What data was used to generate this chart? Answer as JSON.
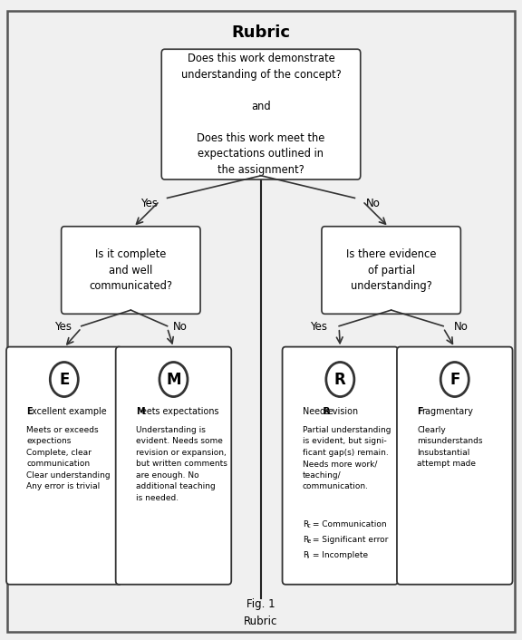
{
  "title": "Rubric",
  "fig_caption": "Fig. 1\nRubric",
  "root_box_text": "Does this work demonstrate\nunderstanding of the concept?\n\nand\n\nDoes this work meet the\nexpectations outlined in\nthe assignment?",
  "left_q_text": "Is it complete\nand well\ncommunicated?",
  "right_q_text": "Is there evidence\nof partial\nunderstanding?",
  "e_letter": "E",
  "m_letter": "M",
  "r_letter": "R",
  "f_letter": "F",
  "e_body": "Meets or exceeds\nexpections\nComplete, clear\ncommunication\nClear understanding\nAny error is trivial",
  "m_body": "Understanding is\nevident. Needs some\nrevision or expansion,\nbut written comments\nare enough. No\nadditional teaching\nis needed.",
  "r_body_pre": "Partial understanding\nis evident, but signi-\nficant gap(s) remain.\nNeeds more work/\nteaching/\ncommunication.",
  "f_body": "Clearly\nmisunderstands\nInsubstantial\nattempt made",
  "bg_color": "#f0f0f0",
  "box_facecolor": "#ffffff",
  "box_edgecolor": "#333333",
  "text_color": "#000000",
  "arrow_color": "#333333",
  "divider_color": "#222222"
}
